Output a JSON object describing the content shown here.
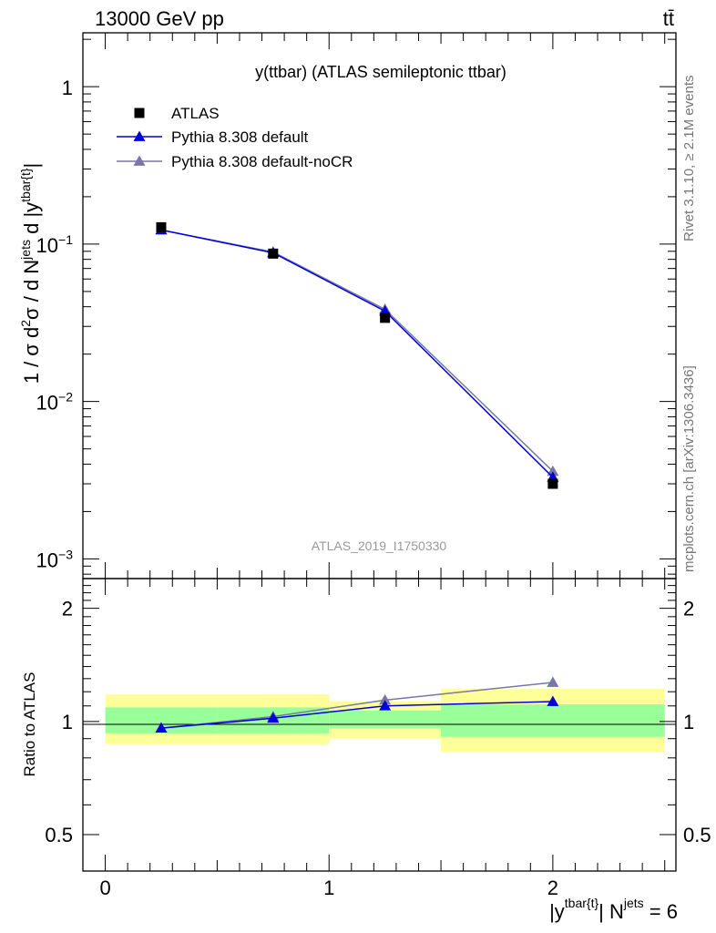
{
  "header": {
    "energy_label": "13000 GeV pp",
    "process_label": "tt̄"
  },
  "side_labels": {
    "rivet": "Rivet 3.1.10, ≥ 2.1M events",
    "mcplots": "mcplots.cern.ch [arXiv:1306.3436]"
  },
  "main_panel": {
    "title": "y(ttbar) (ATLAS semileptonic ttbar)",
    "watermark": "ATLAS_2019_I1750330",
    "ylabel": "1 / σ d²σ / d N^jets d |y^tbar{t}|",
    "ylabel_parts": {
      "a": "1 / σ d",
      "sup1": "2",
      "b": "σ / d N",
      "sup2": "jets",
      "c": " d |y",
      "sup3": "tbar{t}",
      "d": "|"
    },
    "y_ticks": [
      {
        "base": "10",
        "exp": "−3"
      },
      {
        "base": "10",
        "exp": "−2"
      },
      {
        "base": "10",
        "exp": "−1"
      },
      {
        "base": "1",
        "exp": ""
      }
    ]
  },
  "ratio_panel": {
    "ylabel": "Ratio to ATLAS",
    "y_ticks": [
      "0.5",
      "1",
      "2"
    ]
  },
  "x_axis": {
    "tick_labels": [
      "0",
      "1",
      "2"
    ],
    "label_parts": {
      "a": "|y",
      "sup1": "tbar{t}",
      "b": "| N",
      "sup2": "jets",
      "c": " = 6"
    }
  },
  "chart_data": {
    "type": "line",
    "title": "y(ttbar) (ATLAS semileptonic ttbar)",
    "xlabel": "|y^tbar{t}| N^jets = 6",
    "ylabel": "1 / σ d²σ / d N^jets d |y^tbar{t}|",
    "x_scale": "linear",
    "y_scale": "log",
    "xlim": [
      -0.1,
      2.55
    ],
    "ylim": [
      0.00075,
      2.2
    ],
    "ratio_ylim": [
      0.4,
      2.4
    ],
    "bins": [
      [
        0,
        0.5
      ],
      [
        0.5,
        1.0
      ],
      [
        1.0,
        1.5
      ],
      [
        1.5,
        2.5
      ]
    ],
    "x": [
      0.25,
      0.75,
      1.25,
      2.0
    ],
    "legend_position": "top-left",
    "series": [
      {
        "name": "ATLAS",
        "marker": "square",
        "color": "#000000",
        "values": [
          0.128,
          0.087,
          0.034,
          0.003
        ]
      },
      {
        "name": "Pythia 8.308 default",
        "marker": "triangle",
        "color": "#0000dd",
        "values": [
          0.123,
          0.088,
          0.0375,
          0.0033
        ]
      },
      {
        "name": "Pythia 8.308 default-noCR",
        "marker": "triangle",
        "color": "#7777aa",
        "values": [
          0.123,
          0.089,
          0.0385,
          0.0036
        ]
      }
    ],
    "ratio_series": [
      {
        "name": "Pythia 8.308 default",
        "values": [
          0.96,
          1.02,
          1.1,
          1.13
        ],
        "errors": [
          0.004,
          0.005,
          0.01,
          0.03
        ]
      },
      {
        "name": "Pythia 8.308 default-noCR",
        "values": [
          0.96,
          1.03,
          1.14,
          1.27
        ],
        "errors": [
          0.004,
          0.005,
          0.01,
          0.035
        ]
      }
    ],
    "uncertainty_bands": {
      "inner": [
        [
          0.93,
          1.09
        ],
        [
          0.93,
          1.09
        ],
        [
          0.96,
          1.07
        ],
        [
          0.91,
          1.11
        ]
      ],
      "outer": [
        [
          0.87,
          1.18
        ],
        [
          0.87,
          1.18
        ],
        [
          0.9,
          1.13
        ],
        [
          0.83,
          1.22
        ]
      ],
      "inner_color": "#99ff99",
      "outer_color": "#ffff99"
    }
  }
}
